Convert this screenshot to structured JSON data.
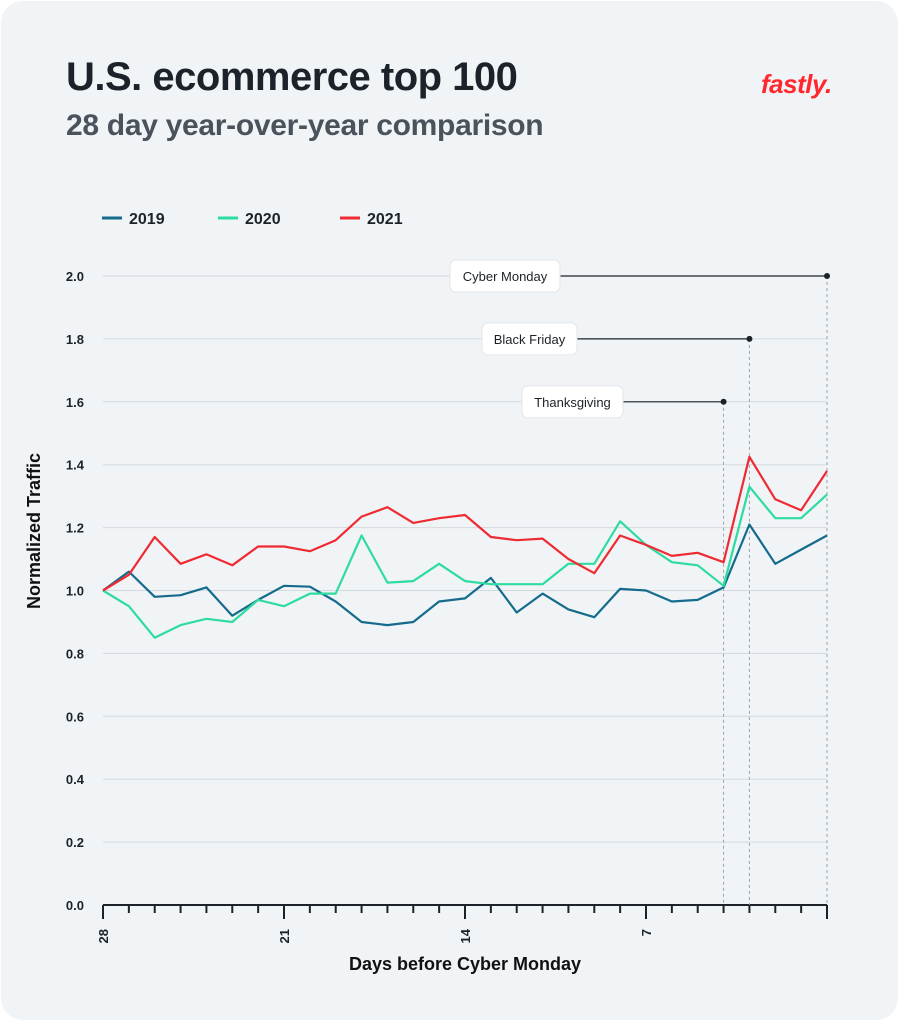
{
  "header": {
    "title": "U.S. ecommerce top 100",
    "subtitle": "28 day year-over-year comparison",
    "logo": "fastly."
  },
  "colors": {
    "2019": "#146b8c",
    "2020": "#2edba1",
    "2021": "#ef2b32",
    "logo": "#ff282d"
  },
  "chart_data": {
    "type": "line",
    "xlabel": "Days before Cyber Monday",
    "ylabel": "Normalized Traffic",
    "ylim": [
      0,
      2.0
    ],
    "y_ticks": [
      "0.0",
      "0.2",
      "0.4",
      "0.6",
      "0.8",
      "1.0",
      "1.2",
      "1.4",
      "1.6",
      "1.8",
      "2.0"
    ],
    "x": [
      28,
      27,
      26,
      25,
      24,
      23,
      22,
      21,
      20,
      19,
      18,
      17,
      16,
      15,
      14,
      13,
      12,
      11,
      10,
      9,
      8,
      7,
      6,
      5,
      4,
      3,
      2,
      1,
      0
    ],
    "x_tick_labels": [
      {
        "x": 28,
        "label": "28"
      },
      {
        "x": 21,
        "label": "21"
      },
      {
        "x": 14,
        "label": "14"
      },
      {
        "x": 7,
        "label": "7"
      }
    ],
    "grid": true,
    "legend": "top-left",
    "series": [
      {
        "name": "2019",
        "values": [
          1.0,
          1.06,
          0.98,
          0.985,
          1.01,
          0.92,
          0.97,
          1.015,
          1.012,
          0.965,
          0.9,
          0.89,
          0.9,
          0.965,
          0.975,
          1.04,
          0.93,
          0.99,
          0.94,
          0.915,
          1.005,
          1.0,
          0.965,
          0.97,
          1.01,
          1.21,
          1.085,
          1.13,
          1.175
        ]
      },
      {
        "name": "2020",
        "values": [
          1.0,
          0.95,
          0.85,
          0.89,
          0.91,
          0.9,
          0.97,
          0.95,
          0.99,
          0.99,
          1.175,
          1.025,
          1.03,
          1.085,
          1.03,
          1.02,
          1.02,
          1.02,
          1.085,
          1.085,
          1.22,
          1.145,
          1.09,
          1.08,
          1.015,
          1.33,
          1.23,
          1.23,
          1.305
        ]
      },
      {
        "name": "2021",
        "values": [
          1.0,
          1.05,
          1.17,
          1.085,
          1.115,
          1.08,
          1.14,
          1.14,
          1.125,
          1.16,
          1.235,
          1.265,
          1.215,
          1.23,
          1.24,
          1.17,
          1.16,
          1.165,
          1.1,
          1.055,
          1.175,
          1.145,
          1.11,
          1.12,
          1.09,
          1.425,
          1.29,
          1.255,
          1.38
        ]
      }
    ],
    "annotations": [
      {
        "label": "Cyber Monday",
        "x": 0,
        "y": 2.0
      },
      {
        "label": "Black Friday",
        "x": 3,
        "y": 1.8
      },
      {
        "label": "Thanksgiving",
        "x": 4,
        "y": 1.6
      }
    ]
  }
}
